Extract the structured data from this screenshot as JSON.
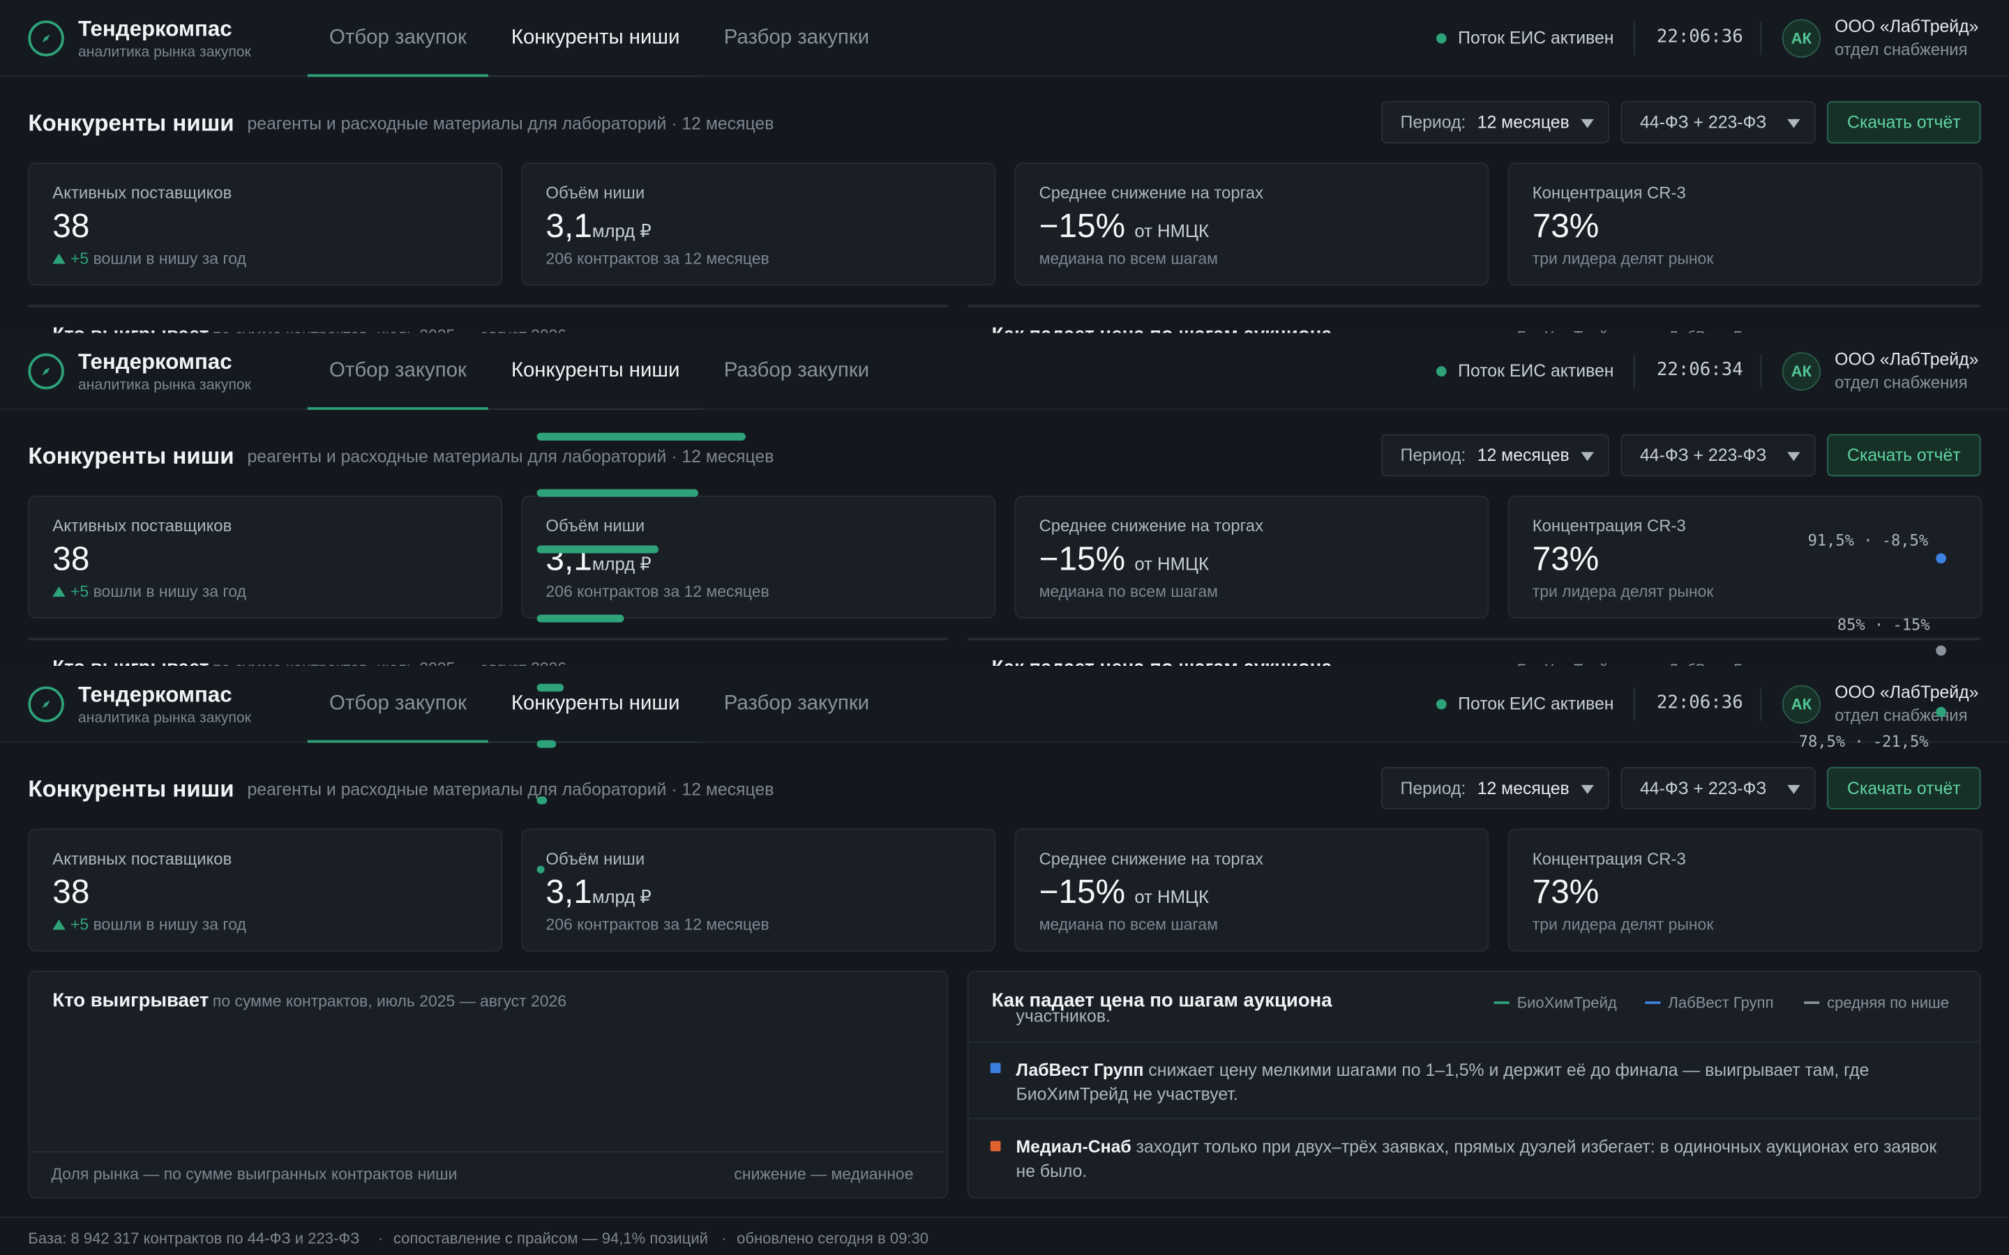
{
  "app": {
    "title": "Тендеркомпас",
    "subtitle": "аналитика рынка закупок"
  },
  "tabs": [
    {
      "label": "Отбор закупок",
      "active": false
    },
    {
      "label": "Конкуренты ниши",
      "active": true
    },
    {
      "label": "Разбор закупки",
      "active": false
    }
  ],
  "status": {
    "text": "Поток ЕИС активен",
    "color": "#2ea37a"
  },
  "clocks": [
    "22:06:36",
    "22:06:34",
    "22:06:36"
  ],
  "user": {
    "initials": "АК",
    "org": "ООО «ЛабТрейд»",
    "dept": "отдел снабжения"
  },
  "page": {
    "title": "Конкуренты ниши",
    "subtitle": "реагенты и расходные материалы для лабораторий · 12 месяцев"
  },
  "filters": {
    "period_label": "Период:",
    "period_value": "12 месяцев",
    "law_value": "44-ФЗ + 223-ФЗ",
    "download_label": "Скачать отчёт"
  },
  "kpis": [
    {
      "title": "Активных поставщиков",
      "value": "38",
      "unit": "",
      "note_up": "+5",
      "note": "вошли в нишу за год"
    },
    {
      "title": "Объём ниши",
      "value": "3,1",
      "unit": "млрд ₽",
      "note_up": "",
      "note": "206 контрактов за 12 месяцев"
    },
    {
      "title": "Среднее снижение на торгах",
      "value": "−15%",
      "unit": "от НМЦК",
      "note_up": "",
      "note": "медиана по всем шагам"
    },
    {
      "title": "Концентрация CR-3",
      "value": "73%",
      "unit": "",
      "note_up": "",
      "note": "три лидера делят рынок"
    }
  ],
  "panels": {
    "winners": {
      "title": "Кто выигрывает",
      "meta": "по сумме контрактов, июль 2025 — август 2026",
      "footer_left": "Доля рынка — по сумме выигранных контрактов ниши",
      "footer_right": "снижение — медианное"
    },
    "price_steps": {
      "title": "Как падает цена по шагам аукциона",
      "legend": [
        {
          "name": "БиоХимТрейд",
          "color": "#2ea37a"
        },
        {
          "name": "ЛабВест Групп",
          "color": "#3b82e0"
        },
        {
          "name": "средняя по нише",
          "color": "#8a939c"
        }
      ]
    }
  },
  "chart_data": {
    "type": "line",
    "title": "Как падает цена по шагам аукциона",
    "point_labels": [
      "91,5% · -8,5%",
      "85% · -15%",
      "78,5% · -21,5%"
    ],
    "series": [
      {
        "name": "ЛабВест Групп",
        "values": [
          91.5
        ],
        "color": "#3b82e0"
      },
      {
        "name": "средняя по нише",
        "values": [
          85
        ],
        "color": "#8a939c"
      },
      {
        "name": "БиоХимТрейд",
        "values": [
          78.5
        ],
        "color": "#2ea37a"
      }
    ]
  },
  "winner_bars": [
    1,
    0.77,
    0.58,
    0.42,
    0.13,
    0.09,
    0.05,
    0.02,
    0.01
  ],
  "insights": [
    {
      "name": "",
      "text": "участников.",
      "color": ""
    },
    {
      "name": "ЛабВест Групп",
      "text": " снижает цену мелкими шагами по 1–1,5% и держит её до финала — выигрывает там, где БиоХимТрейд не участвует.",
      "color": "#3b82e0"
    },
    {
      "name": "Медиал-Снаб",
      "text": " заходит только при двух–трёх заявках, прямых дуэлей избегает: в одиночных аукционах его заявок не было.",
      "color": "#e0622c"
    }
  ],
  "footer": {
    "base": "База: 8 942 317 контрактов по 44-ФЗ и 223-ФЗ",
    "match": "сопоставление с прайсом — 94,1% позиций",
    "updated": "обновлено сегодня в 09:30",
    "sep": "·"
  }
}
